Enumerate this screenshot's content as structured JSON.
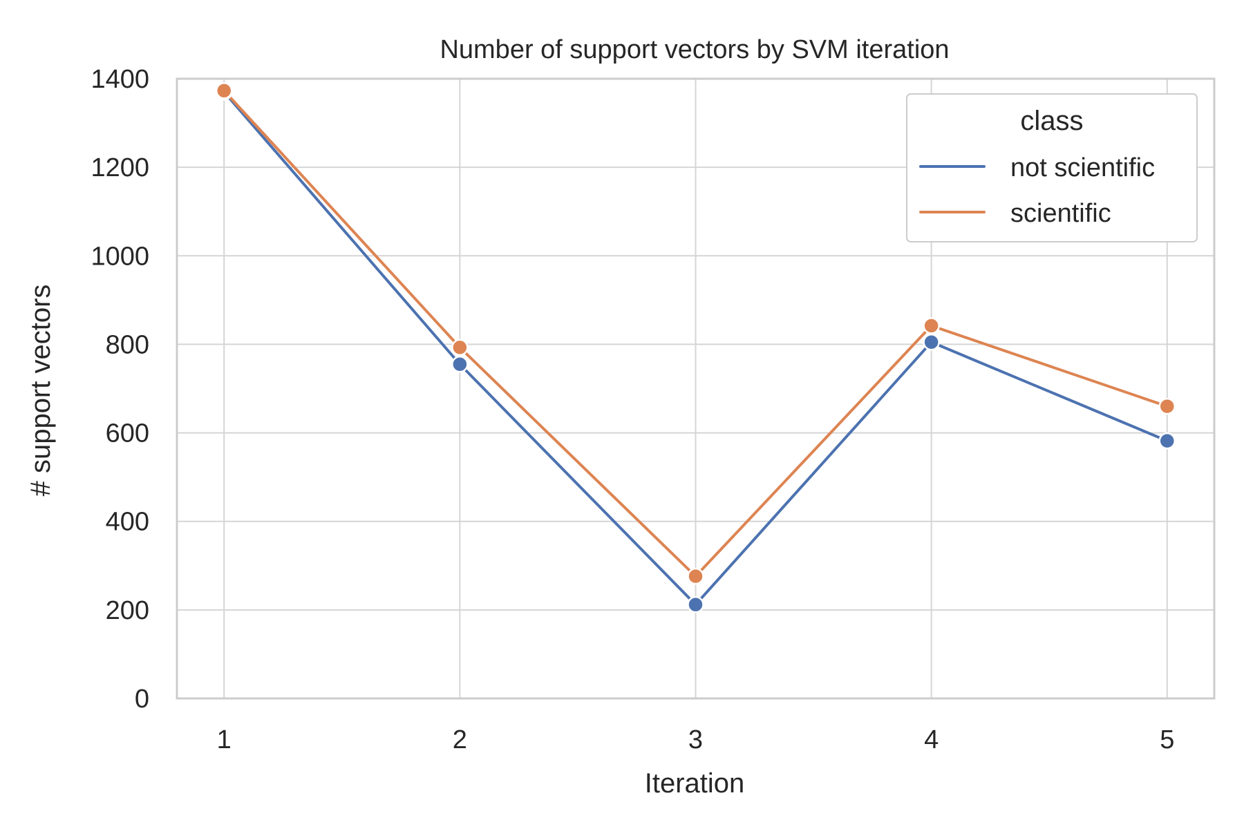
{
  "chart_data": {
    "type": "line",
    "title": "Number of support vectors by SVM iteration",
    "xlabel": "Iteration",
    "ylabel": "# support vectors",
    "x": [
      1,
      2,
      3,
      4,
      5
    ],
    "x_ticks": [
      "1",
      "2",
      "3",
      "4",
      "5"
    ],
    "y_ticks": [
      "0",
      "200",
      "400",
      "600",
      "800",
      "1000",
      "1200",
      "1400"
    ],
    "xlim": [
      0.8,
      5.2
    ],
    "ylim": [
      0,
      1400
    ],
    "grid": true,
    "legend": {
      "title": "class",
      "placement": "top-right"
    },
    "series": [
      {
        "name": "not scientific",
        "color": "#4c72b0",
        "values": [
          1370,
          755,
          212,
          805,
          582
        ]
      },
      {
        "name": "scientific",
        "color": "#dd8452",
        "values": [
          1373,
          793,
          276,
          842,
          660
        ]
      }
    ]
  }
}
